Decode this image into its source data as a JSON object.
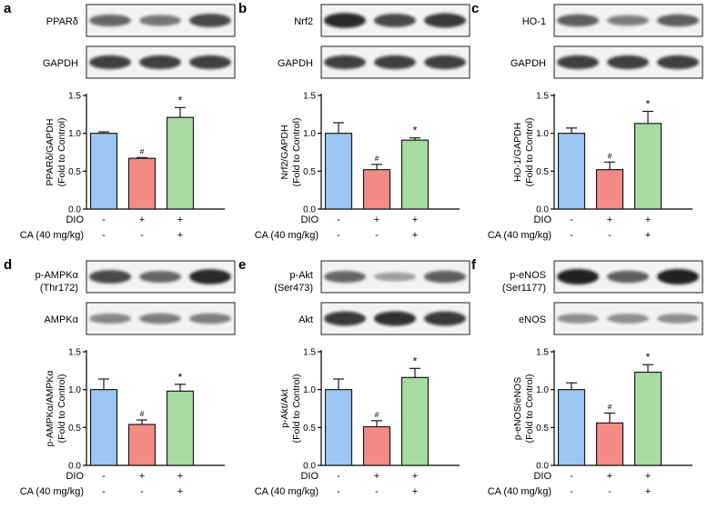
{
  "figure": {
    "conditions": {
      "row_labels": [
        "DIO",
        "CA (40 mg/kg)"
      ],
      "columns": [
        [
          "-",
          "-"
        ],
        [
          "+",
          "-"
        ],
        [
          "+",
          "+"
        ]
      ]
    },
    "colors": {
      "control": "#9ec6f3",
      "dio": "#f28b86",
      "dio_ca": "#a6dca1",
      "outline": "#1a1a1a",
      "blot_band": "#141414"
    },
    "yticks": [
      "0.0",
      "0.5",
      "1.0",
      "1.5"
    ]
  },
  "panels": [
    {
      "letter": "a",
      "blot_top_label": "PPARδ",
      "blot_bottom_label": "GAPDH",
      "ylabel_line1": "PPARδ/GAPDH",
      "ylabel_line2": "(Fold to Control)",
      "band_intensity_top": [
        0.55,
        0.45,
        0.75
      ],
      "band_intensity_bottom": [
        0.8,
        0.8,
        0.8
      ]
    },
    {
      "letter": "b",
      "blot_top_label": "Nrf2",
      "blot_bottom_label": "GAPDH",
      "ylabel_line1": "Nrf2/GAPDH",
      "ylabel_line2": "(Fold to Control)",
      "band_intensity_top": [
        0.95,
        0.75,
        0.85
      ],
      "band_intensity_bottom": [
        0.8,
        0.8,
        0.8
      ]
    },
    {
      "letter": "c",
      "blot_top_label": "HO-1",
      "blot_bottom_label": "GAPDH",
      "ylabel_line1": "HO-1/GAPDH",
      "ylabel_line2": "(Fold to Control)",
      "band_intensity_top": [
        0.6,
        0.4,
        0.6
      ],
      "band_intensity_bottom": [
        0.8,
        0.8,
        0.8
      ]
    },
    {
      "letter": "d",
      "blot_top_label": "p-AMPKα",
      "blot_top_label2": "(Thr172)",
      "blot_bottom_label": "AMPKα",
      "ylabel_line1": "p-AMPKα/AMPKα",
      "ylabel_line2": "(Fold to Control)",
      "band_intensity_top": [
        0.75,
        0.55,
        0.95
      ],
      "band_intensity_bottom": [
        0.35,
        0.4,
        0.4
      ]
    },
    {
      "letter": "e",
      "blot_top_label": "p-Akt",
      "blot_top_label2": "(Ser473)",
      "blot_bottom_label": "Akt",
      "ylabel_line1": "p-Akt/Akt",
      "ylabel_line2": "(Fold to Control)",
      "band_intensity_top": [
        0.55,
        0.2,
        0.6
      ],
      "band_intensity_bottom": [
        0.85,
        0.9,
        0.85
      ]
    },
    {
      "letter": "f",
      "blot_top_label": "p-eNOS",
      "blot_top_label2": "(Ser1177)",
      "blot_bottom_label": "eNOS",
      "ylabel_line1": "p-eNOS/eNOS",
      "ylabel_line2": "(Fold to Control)",
      "band_intensity_top": [
        1.0,
        0.6,
        1.0
      ],
      "band_intensity_bottom": [
        0.3,
        0.3,
        0.3
      ]
    }
  ],
  "chart_data": [
    {
      "type": "bar",
      "panel": "a",
      "categories": [
        "Control",
        "DIO",
        "DIO + CA"
      ],
      "values": [
        1.0,
        0.67,
        1.21
      ],
      "errors": [
        0.02,
        0.01,
        0.13
      ],
      "annotations": [
        "",
        "#",
        "*"
      ],
      "ylabel": "PPARδ/GAPDH (Fold to Control)",
      "ylim": [
        0,
        1.5
      ]
    },
    {
      "type": "bar",
      "panel": "b",
      "categories": [
        "Control",
        "DIO",
        "DIO + CA"
      ],
      "values": [
        1.0,
        0.52,
        0.91
      ],
      "errors": [
        0.14,
        0.07,
        0.03
      ],
      "annotations": [
        "",
        "#",
        "*"
      ],
      "ylabel": "Nrf2/GAPDH (Fold to Control)",
      "ylim": [
        0,
        1.5
      ]
    },
    {
      "type": "bar",
      "panel": "c",
      "categories": [
        "Control",
        "DIO",
        "DIO + CA"
      ],
      "values": [
        1.0,
        0.52,
        1.13
      ],
      "errors": [
        0.07,
        0.1,
        0.16
      ],
      "annotations": [
        "",
        "#",
        "*"
      ],
      "ylabel": "HO-1/GAPDH (Fold to Control)",
      "ylim": [
        0,
        1.5
      ]
    },
    {
      "type": "bar",
      "panel": "d",
      "categories": [
        "Control",
        "DIO",
        "DIO + CA"
      ],
      "values": [
        1.0,
        0.54,
        0.98
      ],
      "errors": [
        0.14,
        0.06,
        0.09
      ],
      "annotations": [
        "",
        "#",
        "*"
      ],
      "ylabel": "p-AMPKα/AMPKα (Fold to Control)",
      "ylim": [
        0,
        1.5
      ]
    },
    {
      "type": "bar",
      "panel": "e",
      "categories": [
        "Control",
        "DIO",
        "DIO + CA"
      ],
      "values": [
        1.0,
        0.51,
        1.16
      ],
      "errors": [
        0.14,
        0.08,
        0.12
      ],
      "annotations": [
        "",
        "#",
        "*"
      ],
      "ylabel": "p-Akt/Akt (Fold to Control)",
      "ylim": [
        0,
        1.5
      ]
    },
    {
      "type": "bar",
      "panel": "f",
      "categories": [
        "Control",
        "DIO",
        "DIO + CA"
      ],
      "values": [
        1.0,
        0.56,
        1.23
      ],
      "errors": [
        0.09,
        0.13,
        0.1
      ],
      "annotations": [
        "",
        "#",
        "*"
      ],
      "ylabel": "p-eNOS/eNOS (Fold to Control)",
      "ylim": [
        0,
        1.5
      ]
    }
  ]
}
